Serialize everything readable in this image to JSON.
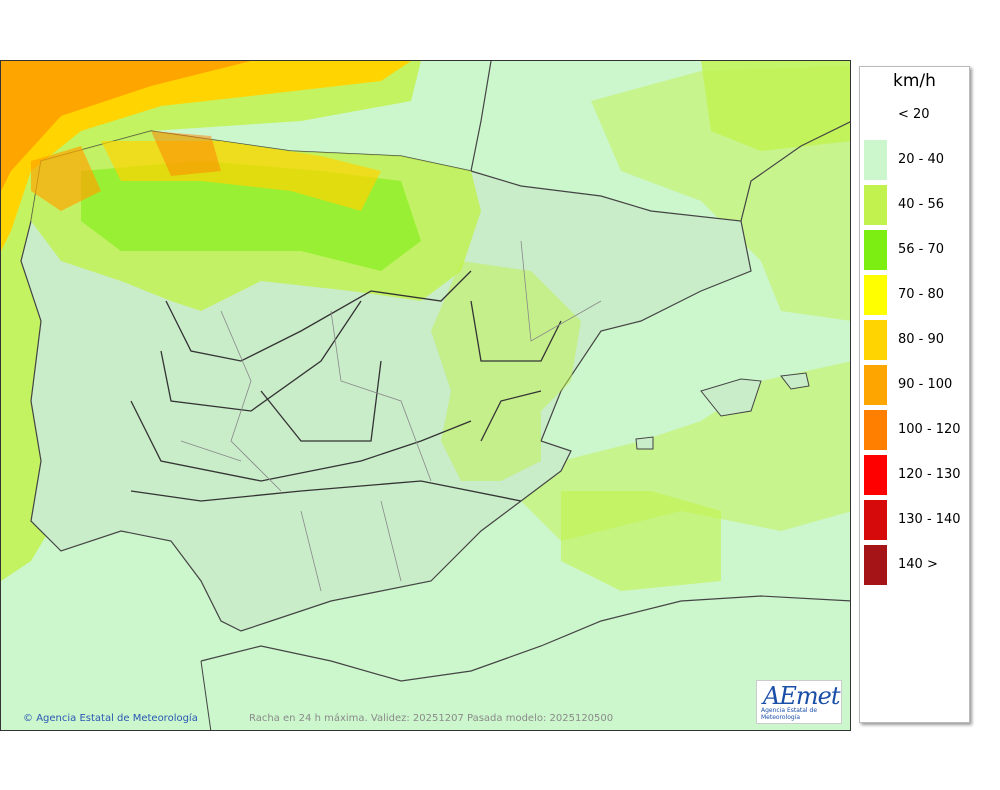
{
  "legend": {
    "unit": "km/h",
    "items": [
      {
        "label": "< 20",
        "color": "#ffffff"
      },
      {
        "label": "20 - 40",
        "color": "#ccf7cc"
      },
      {
        "label": "40 - 56",
        "color": "#c2f24d"
      },
      {
        "label": "56 - 70",
        "color": "#7cee12"
      },
      {
        "label": "70 - 80",
        "color": "#ffff00"
      },
      {
        "label": "80 - 90",
        "color": "#ffd400"
      },
      {
        "label": "90 - 100",
        "color": "#ffa500"
      },
      {
        "label": "100 - 120",
        "color": "#ff7f00"
      },
      {
        "label": "120 - 130",
        "color": "#ff0000"
      },
      {
        "label": "130 - 140",
        "color": "#d60a0a"
      },
      {
        "label": "140 >",
        "color": "#a51417"
      }
    ]
  },
  "credit": "Agencia Estatal de Meteorología",
  "caption": "Racha en 24 h máxima. Validez: 20251207 Pasada modelo: 2025120500",
  "logo": {
    "text": "AEmet",
    "subtitle": "Agencia Estatal de Meteorología"
  }
}
